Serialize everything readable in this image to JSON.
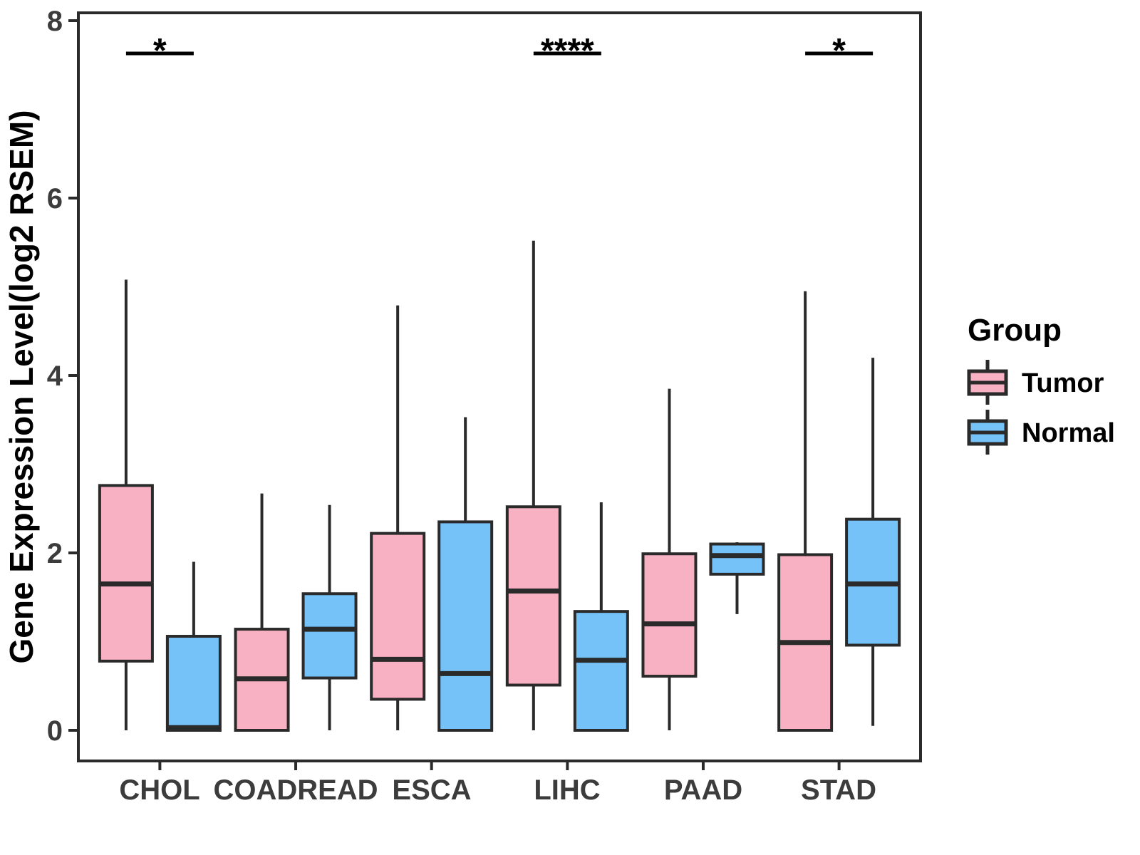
{
  "figure": {
    "background": "#ffffff",
    "panel_border_color": "#2b2b2b",
    "box_stroke_color": "#2a2a2a",
    "tick_text_color": "#3c3c3c"
  },
  "chart_data": {
    "type": "boxplot",
    "title": "",
    "xlabel": "",
    "ylabel": "Gene Expression Level(log2 RSEM)",
    "ylim": [
      0,
      8
    ],
    "yticks": [
      0,
      2,
      4,
      6,
      8
    ],
    "ytick_labels": [
      "0",
      "2",
      "4",
      "6",
      "8"
    ],
    "grid": "off",
    "categories": [
      "CHOL",
      "COADREAD",
      "ESCA",
      "LIHC",
      "PAAD",
      "STAD"
    ],
    "legend": {
      "title": "Group",
      "position": "right"
    },
    "series": [
      {
        "name": "Tumor",
        "color": "#F8B1C3",
        "boxes": [
          {
            "category": "CHOL",
            "min": 0,
            "q1": 0.78,
            "median": 1.65,
            "q3": 2.76,
            "max": 5.08
          },
          {
            "category": "COADREAD",
            "min": 0,
            "q1": 0.0,
            "median": 0.58,
            "q3": 1.14,
            "max": 2.67
          },
          {
            "category": "ESCA",
            "min": 0,
            "q1": 0.35,
            "median": 0.8,
            "q3": 2.22,
            "max": 4.79
          },
          {
            "category": "LIHC",
            "min": 0,
            "q1": 0.51,
            "median": 1.57,
            "q3": 2.52,
            "max": 5.52
          },
          {
            "category": "PAAD",
            "min": 0,
            "q1": 0.61,
            "median": 1.2,
            "q3": 1.99,
            "max": 3.85
          },
          {
            "category": "STAD",
            "min": 0,
            "q1": 0.0,
            "median": 0.99,
            "q3": 1.98,
            "max": 4.95
          }
        ]
      },
      {
        "name": "Normal",
        "color": "#75C2F8",
        "boxes": [
          {
            "category": "CHOL",
            "min": 0,
            "q1": 0.0,
            "median": 0.03,
            "q3": 1.06,
            "max": 1.9
          },
          {
            "category": "COADREAD",
            "min": 0,
            "q1": 0.59,
            "median": 1.14,
            "q3": 1.54,
            "max": 2.54
          },
          {
            "category": "ESCA",
            "min": 0,
            "q1": 0.0,
            "median": 0.64,
            "q3": 2.35,
            "max": 3.53
          },
          {
            "category": "LIHC",
            "min": 0,
            "q1": 0.0,
            "median": 0.79,
            "q3": 1.34,
            "max": 2.57
          },
          {
            "category": "PAAD",
            "min": 1.31,
            "q1": 1.76,
            "median": 1.97,
            "q3": 2.1,
            "max": 2.12
          },
          {
            "category": "STAD",
            "min": 0.05,
            "q1": 0.96,
            "median": 1.65,
            "q3": 2.38,
            "max": 4.2
          }
        ]
      }
    ],
    "significance": [
      {
        "category": "CHOL",
        "category_index": 0,
        "label": "*"
      },
      {
        "category": "LIHC",
        "category_index": 3,
        "label": "****"
      },
      {
        "category": "STAD",
        "category_index": 5,
        "label": "*"
      }
    ]
  }
}
